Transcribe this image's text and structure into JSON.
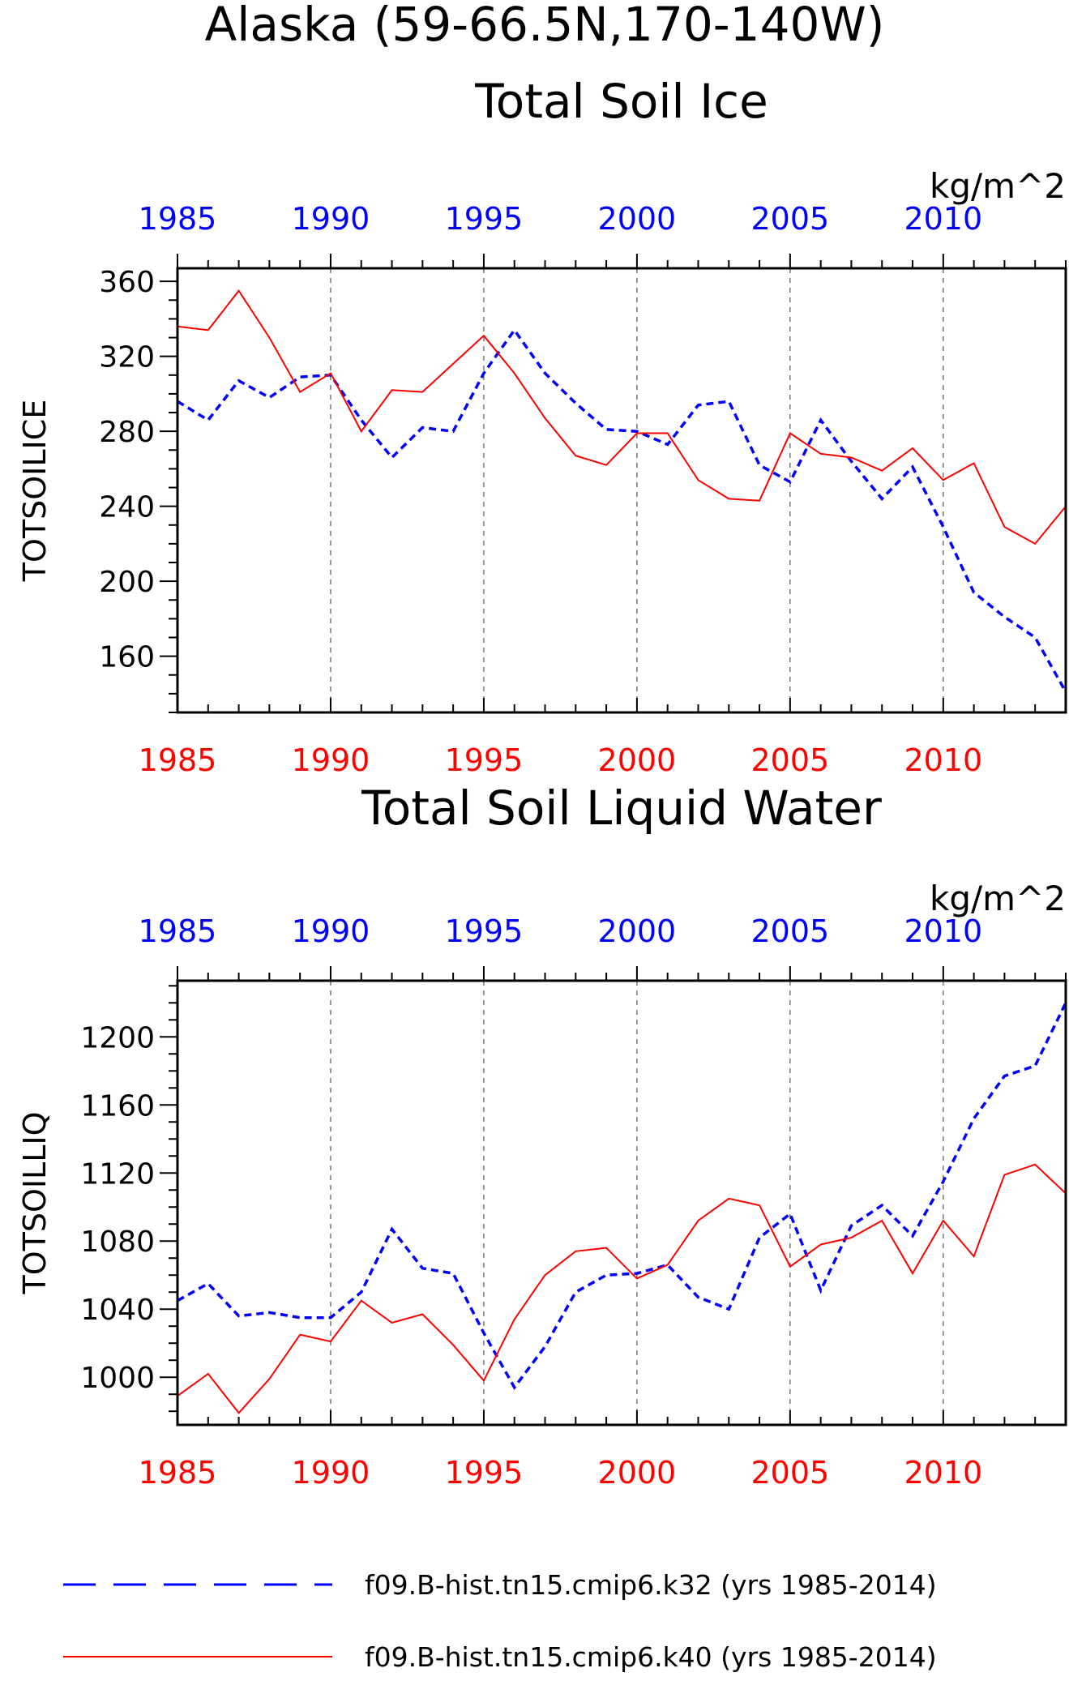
{
  "figure": {
    "title_line1": "Alaska (59-66.5N,170-140W)",
    "units": "kg/m^2"
  },
  "colors": {
    "k32": "#0000ff",
    "k40": "#ff0000",
    "axis": "#000000",
    "grid": "#555555"
  },
  "legend": [
    {
      "label": "f09.B-hist.tn15.cmip6.k32 (yrs 1985-2014)",
      "style": "dashed",
      "color": "#0000ff"
    },
    {
      "label": "f09.B-hist.tn15.cmip6.k40 (yrs 1985-2014)",
      "style": "solid",
      "color": "#ff0000"
    }
  ],
  "chart_data": [
    {
      "type": "line",
      "title": "Total Soil Ice",
      "ylabel": "TOTSOILICE",
      "units": "kg/m^2",
      "xlim": [
        1985,
        2014
      ],
      "ylim": [
        130,
        367
      ],
      "yticks": [
        160,
        200,
        240,
        280,
        320,
        360
      ],
      "xticks": [
        1985,
        1990,
        1995,
        2000,
        2005,
        2010
      ],
      "x": [
        1985,
        1986,
        1987,
        1988,
        1989,
        1990,
        1991,
        1992,
        1993,
        1994,
        1995,
        1996,
        1997,
        1998,
        1999,
        2000,
        2001,
        2002,
        2003,
        2004,
        2005,
        2006,
        2007,
        2008,
        2009,
        2010,
        2011,
        2012,
        2013,
        2014
      ],
      "series": [
        {
          "name": "f09.B-hist.tn15.cmip6.k32",
          "values": [
            296,
            286,
            307,
            298,
            309,
            310,
            286,
            266,
            282,
            280,
            311,
            334,
            311,
            295,
            281,
            280,
            273,
            294,
            296,
            262,
            253,
            286,
            264,
            244,
            261,
            229,
            194,
            181,
            170,
            141
          ]
        },
        {
          "name": "f09.B-hist.tn15.cmip6.k40",
          "values": [
            336,
            334,
            355,
            330,
            301,
            311,
            280,
            302,
            301,
            316,
            331,
            311,
            287,
            267,
            262,
            279,
            279,
            254,
            244,
            243,
            279,
            268,
            266,
            259,
            271,
            254,
            263,
            229,
            220,
            240
          ]
        }
      ]
    },
    {
      "type": "line",
      "title": "Total Soil Liquid Water",
      "ylabel": "TOTSOILLIQ",
      "units": "kg/m^2",
      "xlim": [
        1985,
        2014
      ],
      "ylim": [
        972,
        1233
      ],
      "yticks": [
        1000,
        1040,
        1080,
        1120,
        1160,
        1200
      ],
      "xticks": [
        1985,
        1990,
        1995,
        2000,
        2005,
        2010
      ],
      "x": [
        1985,
        1986,
        1987,
        1988,
        1989,
        1990,
        1991,
        1992,
        1993,
        1994,
        1995,
        1996,
        1997,
        1998,
        1999,
        2000,
        2001,
        2002,
        2003,
        2004,
        2005,
        2006,
        2007,
        2008,
        2009,
        2010,
        2011,
        2012,
        2013,
        2014
      ],
      "series": [
        {
          "name": "f09.B-hist.tn15.cmip6.k32",
          "values": [
            1045,
            1055,
            1036,
            1038,
            1035,
            1035,
            1050,
            1087,
            1064,
            1061,
            1026,
            994,
            1018,
            1050,
            1060,
            1061,
            1066,
            1047,
            1040,
            1082,
            1096,
            1051,
            1089,
            1101,
            1083,
            1115,
            1152,
            1177,
            1183,
            1220
          ]
        },
        {
          "name": "f09.B-hist.tn15.cmip6.k40",
          "values": [
            989,
            1002,
            979,
            999,
            1025,
            1021,
            1045,
            1032,
            1037,
            1019,
            998,
            1034,
            1060,
            1074,
            1076,
            1058,
            1066,
            1092,
            1105,
            1101,
            1065,
            1078,
            1082,
            1092,
            1061,
            1092,
            1071,
            1119,
            1125,
            1108
          ]
        }
      ]
    }
  ]
}
